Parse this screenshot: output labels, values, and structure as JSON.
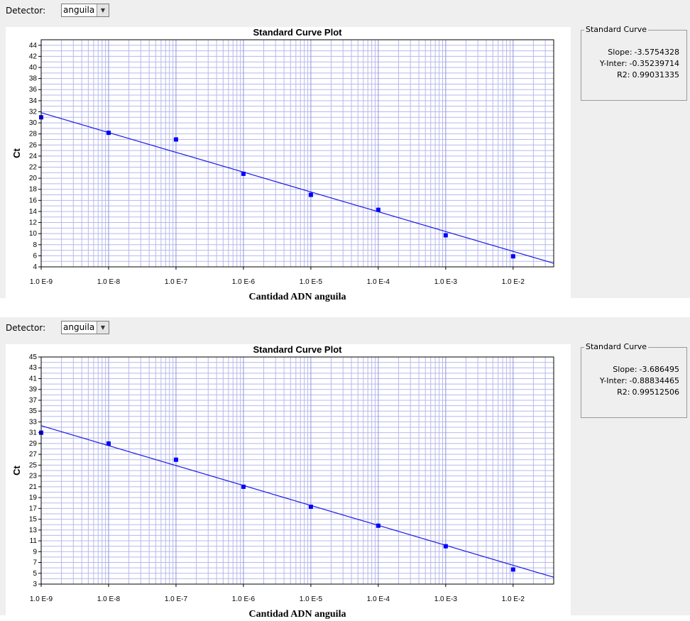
{
  "panels": [
    {
      "detector_label": "Detector:",
      "detector_value": "anguila",
      "standard_curve": {
        "title": "Standard Curve",
        "slope_label": "Slope:",
        "slope": "-3.5754328",
        "yinter_label": "Y-Inter:",
        "yinter": "-0.35239714",
        "r2_label": "R2:",
        "r2": "0.99031335"
      }
    },
    {
      "detector_label": "Detector:",
      "detector_value": "anguila",
      "standard_curve": {
        "title": "Standard Curve",
        "slope_label": "Slope:",
        "slope": "-3.686495",
        "yinter_label": "Y-Inter:",
        "yinter": "-0.88834465",
        "r2_label": "R2:",
        "r2": "0.99512506"
      }
    }
  ],
  "chart_data": [
    {
      "type": "scatter",
      "title": "Standard Curve Plot",
      "xlabel": "Cantidad ADN anguila",
      "ylabel": "Ct",
      "x_scale": "log",
      "x_ticks": [
        "1.0 E-9",
        "1.0 E-8",
        "1.0 E-7",
        "1.0 E-6",
        "1.0 E-5",
        "1.0 E-4",
        "1.0 E-3",
        "1.0 E-2"
      ],
      "xlim": [
        1e-09,
        0.04
      ],
      "ylim": [
        4,
        45
      ],
      "y_ticks": [
        4,
        6,
        8,
        10,
        12,
        14,
        16,
        18,
        20,
        22,
        24,
        26,
        28,
        30,
        32,
        34,
        36,
        38,
        40,
        42,
        44
      ],
      "grid": true,
      "points": [
        {
          "x": 1e-09,
          "y": 31.0
        },
        {
          "x": 1e-08,
          "y": 28.2
        },
        {
          "x": 1e-07,
          "y": 27.0
        },
        {
          "x": 1e-06,
          "y": 20.8
        },
        {
          "x": 1e-05,
          "y": 17.0
        },
        {
          "x": 0.0001,
          "y": 14.3
        },
        {
          "x": 0.001,
          "y": 9.7
        },
        {
          "x": 0.01,
          "y": 5.9
        }
      ],
      "fit": {
        "slope": -3.5754328,
        "intercept": -0.35239714
      }
    },
    {
      "type": "scatter",
      "title": "Standard Curve Plot",
      "xlabel": "Cantidad ADN anguila",
      "ylabel": "Ct",
      "x_scale": "log",
      "x_ticks": [
        "1.0 E-9",
        "1.0 E-8",
        "1.0 E-7",
        "1.0 E-6",
        "1.0 E-5",
        "1.0 E-4",
        "1.0 E-3",
        "1.0 E-2"
      ],
      "xlim": [
        1e-09,
        0.04
      ],
      "ylim": [
        3,
        45
      ],
      "y_ticks": [
        3,
        5,
        7,
        9,
        11,
        13,
        15,
        17,
        19,
        21,
        23,
        25,
        27,
        29,
        31,
        33,
        35,
        37,
        39,
        41,
        43,
        45
      ],
      "grid": true,
      "points": [
        {
          "x": 1e-09,
          "y": 31.0
        },
        {
          "x": 1e-08,
          "y": 29.0
        },
        {
          "x": 1e-07,
          "y": 26.0
        },
        {
          "x": 1e-06,
          "y": 21.0
        },
        {
          "x": 1e-05,
          "y": 17.3
        },
        {
          "x": 0.0001,
          "y": 13.8
        },
        {
          "x": 0.001,
          "y": 10.0
        },
        {
          "x": 0.01,
          "y": 5.7
        }
      ],
      "fit": {
        "slope": -3.686495,
        "intercept": -0.88834465
      }
    }
  ]
}
